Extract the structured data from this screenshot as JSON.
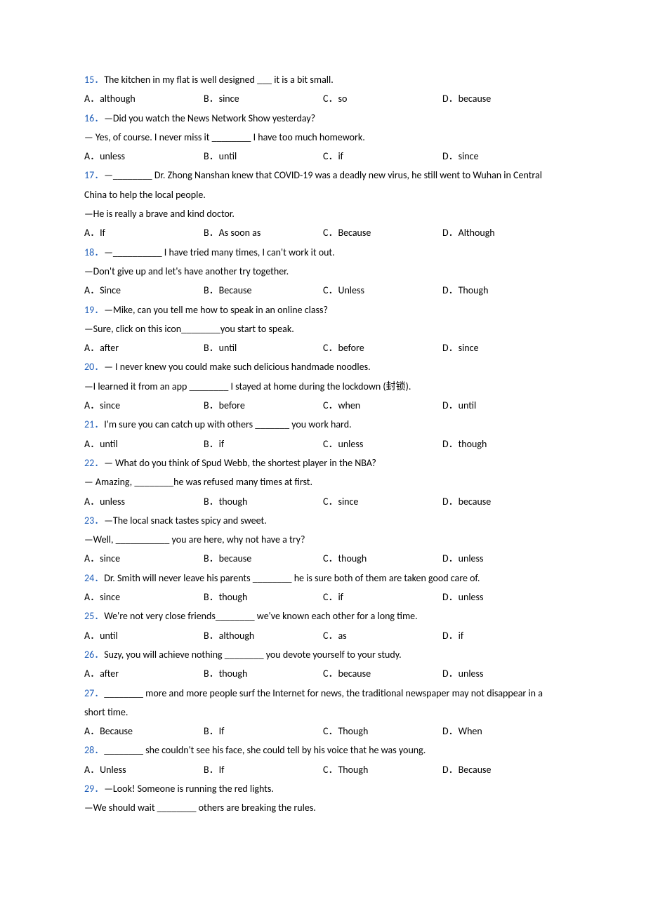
{
  "questions": [
    {
      "num": "15．",
      "lines": [
        "The kitchen in my flat is well designed ___ it is a bit small."
      ],
      "options": [
        "A．although",
        "B．since",
        "C．so",
        "D．because"
      ]
    },
    {
      "num": "16．",
      "lines": [
        "—Did you watch the News Network Show yesterday?",
        "— Yes, of course. I never miss it ________ I have too much homework."
      ],
      "options": [
        "A．unless",
        "B．until",
        "C．if",
        "D．since"
      ]
    },
    {
      "num": "17．",
      "lines": [
        "—________ Dr. Zhong Nanshan knew that COVID-19 was a deadly new virus, he still went to Wuhan in Central China to help the local people.",
        "—He is really a brave and kind doctor."
      ],
      "options": [
        "A．If",
        "B．As soon as",
        "C．Because",
        "D．Although"
      ]
    },
    {
      "num": "18．",
      "lines": [
        "—__________ I have tried many times, I can't work it out.",
        "—Don't give up and let's have another try together."
      ],
      "options": [
        "A．Since",
        "B．Because",
        "C．Unless",
        "D．Though"
      ]
    },
    {
      "num": "19．",
      "lines": [
        "—Mike, can you tell me how to speak in an online class?",
        "—Sure, click on this icon________you start to speak."
      ],
      "options": [
        "A．after",
        "B．until",
        "C．before",
        "D．since"
      ]
    },
    {
      "num": "20．",
      "lines": [
        "— I never knew you could make such delicious handmade noodles.",
        "—I learned it from an app ________ I stayed at home during the lockdown (封锁)."
      ],
      "options": [
        "A．since",
        "B．before",
        "C．when",
        "D．until"
      ]
    },
    {
      "num": "21．",
      "lines": [
        "I'm sure you can catch up with others _______ you work hard."
      ],
      "options": [
        "A．until",
        "B．if",
        "C．unless",
        "D．though"
      ]
    },
    {
      "num": "22．",
      "lines": [
        "— What do you think of Spud Webb, the shortest player in the NBA?",
        "— Amazing, ________he was refused many times at first."
      ],
      "options": [
        "A．unless",
        "B．though",
        "C．since",
        "D．because"
      ]
    },
    {
      "num": "23．",
      "lines": [
        "—The local snack tastes spicy and sweet.",
        "—Well, ___________ you are here, why not have a try?"
      ],
      "options": [
        "A．since",
        "B．because",
        "C．though",
        "D．unless"
      ]
    },
    {
      "num": "24．",
      "lines": [
        "Dr. Smith will never leave his parents ________ he is sure both of them are taken good care of."
      ],
      "options": [
        "A．since",
        "B．though",
        "C．if",
        "D．unless"
      ]
    },
    {
      "num": "25．",
      "lines": [
        "We're not very close friends________ we've known each other for a long time."
      ],
      "options": [
        "A．until",
        "B．although",
        "C．as",
        "D．if"
      ]
    },
    {
      "num": "26．",
      "lines": [
        "Suzy, you will achieve nothing ________ you devote yourself to your study."
      ],
      "options": [
        "A．after",
        "B．though",
        "C．because",
        "D．unless"
      ]
    },
    {
      "num": "27．",
      "lines": [
        "________ more and more people surf the Internet for news, the traditional newspaper may not disappear in a short time."
      ],
      "options": [
        "A．Because",
        "B．If",
        "C．Though",
        "D．When"
      ]
    },
    {
      "num": "28．",
      "lines": [
        "________ she couldn't see his face, she could tell by his voice that he was young."
      ],
      "options": [
        "A．Unless",
        "B．If",
        "C．Though",
        "D．Because"
      ]
    },
    {
      "num": "29．",
      "lines": [
        "—Look! Someone is running the red lights.",
        "—We should wait ________ others are breaking the rules."
      ],
      "options": []
    }
  ]
}
